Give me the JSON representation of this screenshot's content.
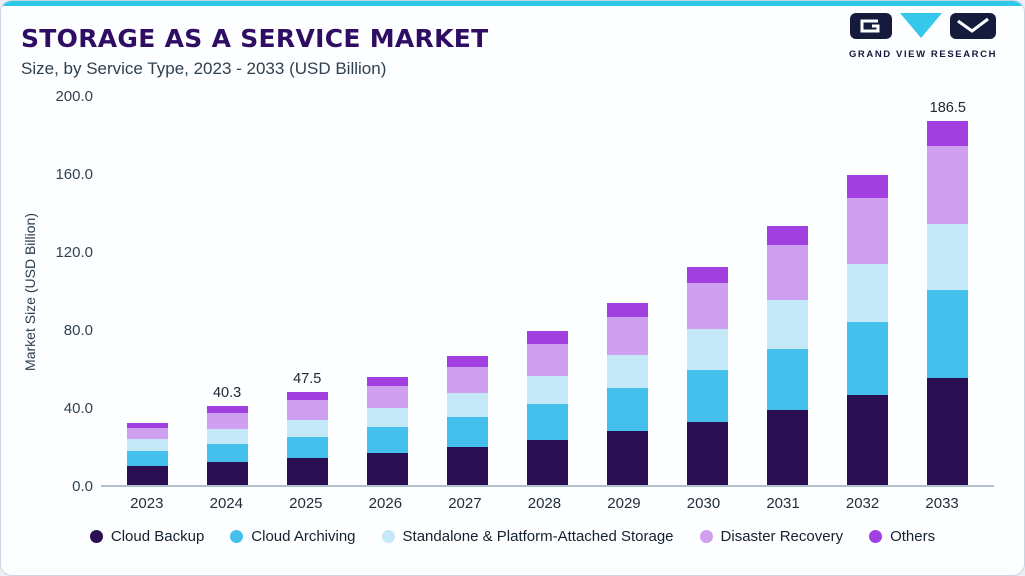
{
  "header": {
    "title": "STORAGE AS A SERVICE MARKET",
    "subtitle": "Size, by Service Type, 2023 - 2033 (USD Billion)"
  },
  "logo": {
    "text": "GRAND VIEW RESEARCH"
  },
  "colors": {
    "accent_cyan": "#2ec9e9",
    "logo_navy": "#141b3d",
    "title_purple": "#2f0d63"
  },
  "chart_data": {
    "type": "bar",
    "stacked": true,
    "title": "STORAGE AS A SERVICE MARKET",
    "subtitle": "Size, by Service Type, 2023 - 2033 (USD Billion)",
    "xlabel": "",
    "ylabel": "Market Size (USD Billion)",
    "ylim": [
      0,
      200
    ],
    "yticks": [
      0,
      40,
      80,
      120,
      160,
      200
    ],
    "grid": false,
    "legend_position": "bottom",
    "categories": [
      "2023",
      "2024",
      "2025",
      "2026",
      "2027",
      "2028",
      "2029",
      "2030",
      "2031",
      "2032",
      "2033"
    ],
    "series": [
      {
        "name": "Cloud Backup",
        "color": "#2a0f52",
        "values": [
          10,
          12,
          14,
          16.5,
          19.5,
          23,
          27.5,
          32.5,
          38.5,
          46,
          55
        ]
      },
      {
        "name": "Cloud Archiving",
        "color": "#45bfec",
        "values": [
          7.5,
          9,
          10.5,
          13,
          15.5,
          18.5,
          22,
          26.5,
          31.5,
          37.5,
          45
        ]
      },
      {
        "name": "Standalone & Platform-Attached Storage",
        "color": "#c6e9f9",
        "values": [
          6,
          7.5,
          9,
          10,
          12,
          14.5,
          17,
          21,
          25,
          30,
          34
        ]
      },
      {
        "name": "Disaster Recovery",
        "color": "#d0a0f0",
        "values": [
          6,
          8.3,
          10,
          11.5,
          13.5,
          16.5,
          19.5,
          23.5,
          28,
          33.5,
          40
        ]
      },
      {
        "name": "Others",
        "color": "#a13fe0",
        "values": [
          2.5,
          3.5,
          4,
          4.5,
          5.5,
          6.5,
          7.5,
          8.5,
          10,
          12,
          12.5
        ]
      }
    ],
    "total_labels": {
      "2024": "40.3",
      "2025": "47.5",
      "2033": "186.5"
    },
    "totals": [
      32,
      40.3,
      47.5,
      55.5,
      66,
      79,
      93.5,
      112,
      133,
      159,
      186.5
    ]
  }
}
